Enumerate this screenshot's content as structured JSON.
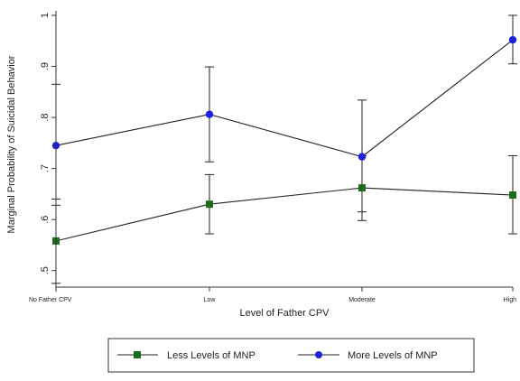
{
  "chart_data": {
    "type": "line",
    "title": "",
    "xlabel": "Level of Father CPV",
    "ylabel": "Marginal Probability of Suicidal Behavior",
    "categories": [
      "No Father CPV",
      "Low",
      "Moderate",
      "High"
    ],
    "ylim": [
      0.48,
      1.0
    ],
    "yticks": [
      0.5,
      0.6,
      0.7,
      0.8,
      0.9,
      1.0
    ],
    "ytick_labels": [
      ".5",
      ".6",
      ".7",
      ".8",
      ".9",
      "1"
    ],
    "grid": false,
    "legend_position": "bottom",
    "series": [
      {
        "name": "Less Levels of MNP",
        "color": "#1e6b1e",
        "marker": "square",
        "values": [
          0.558,
          0.63,
          0.662,
          0.648
        ],
        "ci_low": [
          0.475,
          0.572,
          0.598,
          0.572
        ],
        "ci_high": [
          0.64,
          0.688,
          0.725,
          0.725
        ]
      },
      {
        "name": "More Levels of MNP",
        "color": "#1f1fe0",
        "marker": "circle",
        "values": [
          0.745,
          0.806,
          0.723,
          0.952
        ],
        "ci_low": [
          0.628,
          0.713,
          0.615,
          0.905
        ],
        "ci_high": [
          0.865,
          0.899,
          0.834,
          1.0
        ]
      }
    ]
  }
}
